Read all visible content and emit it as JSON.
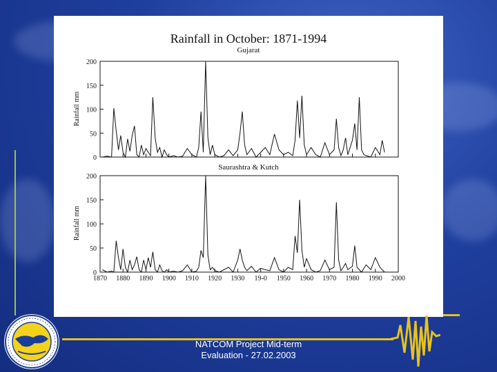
{
  "footer": {
    "line1": "NATCOM Project Mid-term",
    "line2": "Evaluation - 27.02.2003"
  },
  "colors": {
    "accent_yellow": "#e8c21a",
    "accent_green": "#9fc53a"
  },
  "chart_data": [
    {
      "type": "line",
      "title": "Rainfall in October: 1871-1994",
      "subtitle": "Gujarat",
      "xlabel": "",
      "ylabel": "Rainfall mm",
      "ylim": [
        0,
        200
      ],
      "yticks": [
        0,
        50,
        100,
        150,
        200
      ],
      "xlim": [
        1870,
        2000
      ],
      "x": [
        1871,
        1873,
        1875,
        1876,
        1877,
        1878,
        1879,
        1880,
        1881,
        1882,
        1883,
        1884,
        1885,
        1886,
        1887,
        1888,
        1889,
        1890,
        1891,
        1892,
        1893,
        1894,
        1895,
        1896,
        1897,
        1898,
        1899,
        1900,
        1902,
        1904,
        1906,
        1908,
        1910,
        1912,
        1913,
        1914,
        1915,
        1916,
        1917,
        1918,
        1919,
        1920,
        1922,
        1924,
        1926,
        1928,
        1930,
        1931,
        1932,
        1933,
        1934,
        1936,
        1938,
        1940,
        1942,
        1944,
        1946,
        1948,
        1950,
        1952,
        1954,
        1955,
        1956,
        1957,
        1958,
        1959,
        1960,
        1962,
        1964,
        1966,
        1968,
        1970,
        1972,
        1973,
        1974,
        1975,
        1976,
        1977,
        1978,
        1980,
        1981,
        1982,
        1983,
        1984,
        1985,
        1986,
        1988,
        1990,
        1992,
        1993,
        1994
      ],
      "values": [
        0,
        2,
        0,
        102,
        55,
        15,
        45,
        10,
        0,
        38,
        12,
        45,
        65,
        5,
        0,
        25,
        5,
        18,
        10,
        3,
        125,
        40,
        10,
        20,
        0,
        15,
        5,
        0,
        3,
        0,
        2,
        18,
        5,
        0,
        20,
        95,
        10,
        200,
        40,
        5,
        25,
        5,
        0,
        3,
        15,
        3,
        15,
        50,
        95,
        25,
        5,
        18,
        0,
        10,
        20,
        5,
        48,
        15,
        5,
        10,
        3,
        35,
        118,
        40,
        128,
        25,
        5,
        20,
        5,
        0,
        30,
        5,
        15,
        80,
        20,
        3,
        15,
        40,
        5,
        35,
        70,
        15,
        125,
        15,
        5,
        3,
        0,
        20,
        5,
        35,
        10
      ]
    },
    {
      "type": "line",
      "title": "",
      "subtitle": "Saurashtra & Kutch",
      "xlabel": "",
      "ylabel": "Rainfall mm",
      "ylim": [
        0,
        200
      ],
      "yticks": [
        0,
        50,
        100,
        150,
        200
      ],
      "xlim": [
        1870,
        2000
      ],
      "xticks": [
        "1870",
        "1880",
        "1890",
        "1900",
        "1910",
        "1920",
        "1930",
        "19-0",
        "1950",
        "1960",
        "1970",
        "1980",
        "1990",
        "2000"
      ],
      "x": [
        1871,
        1873,
        1875,
        1876,
        1877,
        1878,
        1879,
        1880,
        1881,
        1882,
        1883,
        1884,
        1885,
        1886,
        1887,
        1888,
        1889,
        1890,
        1891,
        1892,
        1893,
        1894,
        1895,
        1896,
        1897,
        1898,
        1899,
        1900,
        1902,
        1904,
        1906,
        1908,
        1910,
        1912,
        1913,
        1914,
        1915,
        1916,
        1917,
        1918,
        1919,
        1920,
        1922,
        1924,
        1926,
        1928,
        1930,
        1931,
        1932,
        1933,
        1934,
        1936,
        1938,
        1940,
        1942,
        1944,
        1946,
        1948,
        1950,
        1952,
        1954,
        1955,
        1956,
        1957,
        1958,
        1959,
        1960,
        1962,
        1964,
        1966,
        1968,
        1970,
        1972,
        1973,
        1974,
        1975,
        1976,
        1977,
        1978,
        1980,
        1981,
        1982,
        1983,
        1984,
        1985,
        1986,
        1988,
        1990,
        1992,
        1993,
        1994
      ],
      "values": [
        5,
        0,
        2,
        0,
        65,
        30,
        5,
        48,
        10,
        0,
        25,
        5,
        15,
        32,
        5,
        0,
        25,
        5,
        30,
        10,
        42,
        5,
        0,
        15,
        3,
        0,
        5,
        0,
        2,
        0,
        3,
        15,
        0,
        2,
        10,
        45,
        30,
        200,
        35,
        5,
        10,
        3,
        0,
        5,
        10,
        0,
        25,
        48,
        25,
        10,
        3,
        12,
        0,
        8,
        5,
        3,
        30,
        5,
        0,
        10,
        5,
        75,
        40,
        150,
        45,
        10,
        28,
        5,
        0,
        3,
        25,
        5,
        10,
        145,
        25,
        3,
        10,
        18,
        5,
        12,
        55,
        10,
        5,
        0,
        8,
        15,
        5,
        30,
        10,
        5,
        0
      ]
    }
  ]
}
